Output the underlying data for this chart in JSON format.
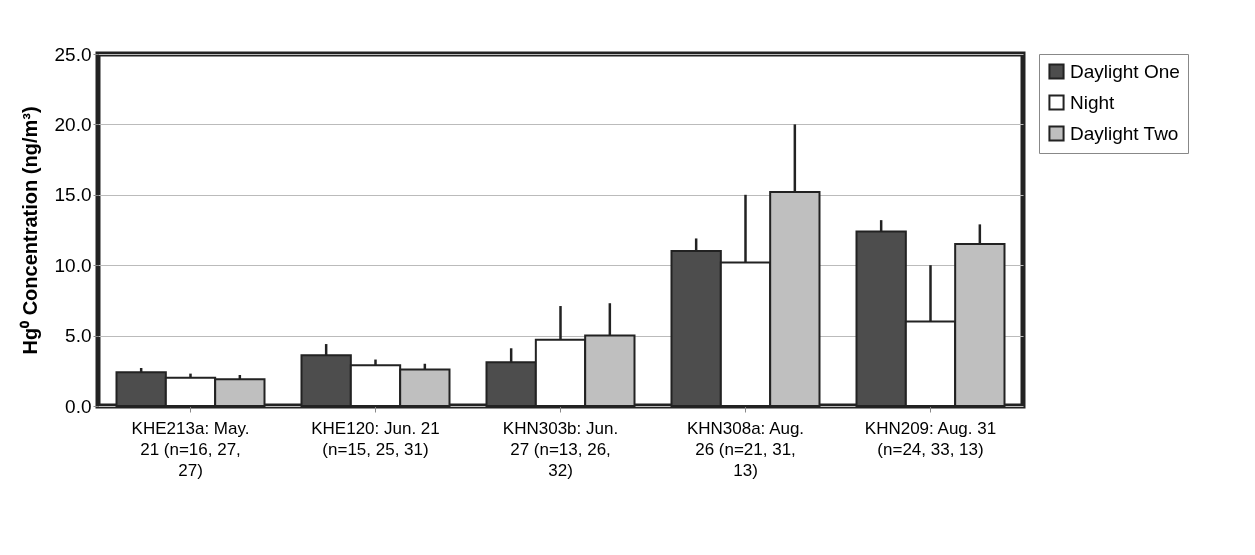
{
  "chart_data": {
    "type": "bar",
    "ylabel": "Hg⁰ Concentration (ng/m³)",
    "categories": [
      "KHE213a: May. 21 (n=16, 27, 27)",
      "KHE120: Jun. 21 (n=15, 25, 31)",
      "KHN303b: Jun. 27 (n=13, 26, 32)",
      "KHN308a: Aug. 26 (n=21, 31, 13)",
      "KHN209: Aug. 31 (n=24, 33, 13)"
    ],
    "series": [
      {
        "name": "Daylight One",
        "color": "#4d4d4d",
        "values": [
          2.4,
          3.6,
          3.1,
          11.0,
          12.4
        ],
        "errors": [
          [
            2.4,
            2.7
          ],
          [
            3.6,
            4.4
          ],
          [
            3.1,
            4.1
          ],
          [
            11.0,
            11.9
          ],
          [
            12.4,
            13.2
          ]
        ]
      },
      {
        "name": "Night",
        "color": "#ffffff",
        "values": [
          2.0,
          2.9,
          4.7,
          10.2,
          6.0
        ],
        "errors": [
          [
            2.0,
            2.3
          ],
          [
            2.9,
            3.3
          ],
          [
            4.7,
            7.1
          ],
          [
            10.2,
            15.0
          ],
          [
            6.0,
            10.0
          ]
        ]
      },
      {
        "name": "Daylight Two",
        "color": "#bfbfbf",
        "values": [
          1.9,
          2.6,
          5.0,
          15.2,
          11.5
        ],
        "errors": [
          [
            1.9,
            2.2
          ],
          [
            2.6,
            3.0
          ],
          [
            5.0,
            7.3
          ],
          [
            15.2,
            20.0
          ],
          [
            11.5,
            12.9
          ]
        ]
      }
    ],
    "ylim": [
      0,
      25
    ],
    "yticks": [
      {
        "value": 0,
        "label": "0.0"
      },
      {
        "value": 5,
        "label": "5.0"
      },
      {
        "value": 10,
        "label": "10.0"
      },
      {
        "value": 15,
        "label": "15.0"
      },
      {
        "value": 20,
        "label": "20.0"
      },
      {
        "value": 25,
        "label": "25.0"
      }
    ],
    "grid": "y",
    "legend": "right"
  }
}
